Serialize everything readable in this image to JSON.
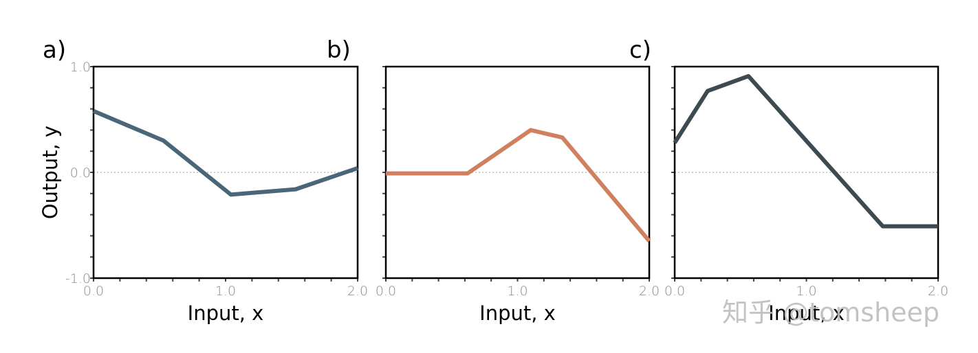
{
  "chart_data": [
    {
      "type": "line",
      "panel_label": "a)",
      "xlabel": "Input, x",
      "ylabel": "Output, y",
      "xlim": [
        0,
        2
      ],
      "ylim": [
        -1,
        1
      ],
      "xticks": [
        "0.0",
        "1.0",
        "2.0"
      ],
      "yticks": [
        "-1.0",
        "0.0",
        "1.0"
      ],
      "color": "#4a6679",
      "x": [
        0,
        0.53,
        1.04,
        1.53,
        2.0
      ],
      "y": [
        0.58,
        0.3,
        -0.21,
        -0.16,
        0.04
      ]
    },
    {
      "type": "line",
      "panel_label": "b)",
      "xlabel": "Input, x",
      "ylabel": "",
      "xlim": [
        0,
        2
      ],
      "ylim": [
        -1,
        1
      ],
      "xticks": [
        "0.0",
        "1.0",
        "2.0"
      ],
      "yticks": [],
      "color": "#d0805e",
      "x": [
        0,
        0.62,
        1.1,
        1.34,
        2.0
      ],
      "y": [
        -0.01,
        -0.01,
        0.4,
        0.33,
        -0.65
      ]
    },
    {
      "type": "line",
      "panel_label": "c)",
      "xlabel": "Input, x",
      "ylabel": "",
      "xlim": [
        0,
        2
      ],
      "ylim": [
        -1,
        1
      ],
      "xticks": [
        "0.0",
        "1.0",
        "2.0"
      ],
      "yticks": [],
      "color": "#3e4a51",
      "x": [
        0,
        0.25,
        0.56,
        1.58,
        2.0
      ],
      "y": [
        0.28,
        0.77,
        0.91,
        -0.51,
        -0.51
      ]
    }
  ],
  "watermark": "知乎 @tomsheep"
}
